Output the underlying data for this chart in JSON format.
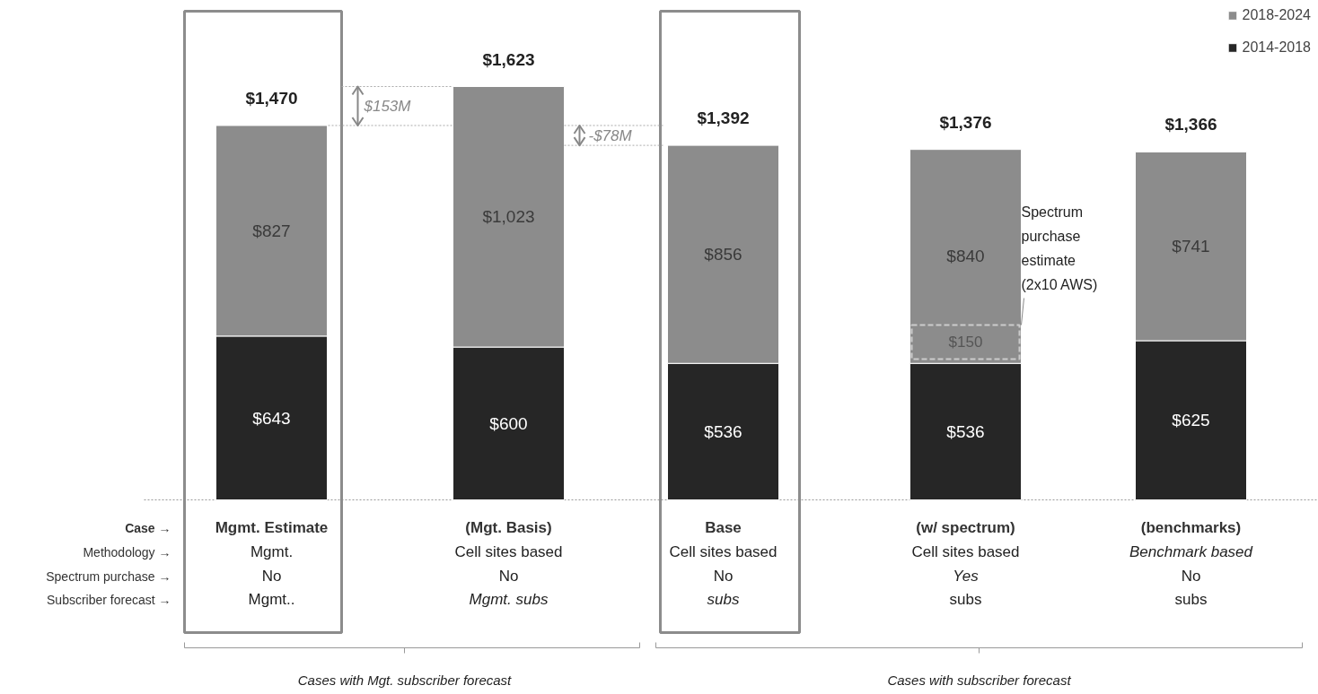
{
  "chart_data": {
    "type": "bar",
    "stacked": true,
    "legend": "top right",
    "categories": [
      "Mgmt. Estimate",
      "(Mgt. Basis)",
      "Base",
      "(w/ spectrum)",
      "(benchmarks)"
    ],
    "series": [
      {
        "name": "2014-2018",
        "color": "#262626",
        "values": [
          643,
          600,
          536,
          536,
          625
        ],
        "value_labels": [
          "$643",
          "$600",
          "$536",
          "$536",
          "$625"
        ]
      },
      {
        "name": "2018-2024",
        "color": "#8c8c8c",
        "values": [
          827,
          1023,
          856,
          840,
          741
        ],
        "value_labels": [
          "$827",
          "$1,023",
          "$856",
          "$840",
          "$741"
        ]
      }
    ],
    "totals": [
      "$1,470",
      "$1,623",
      "$1,392",
      "$1,376",
      "$1,366"
    ],
    "ref_lines": [
      {
        "axis": "y",
        "value": 1470,
        "color": "#aaaaaa",
        "line_style": "dotted"
      },
      {
        "axis": "y",
        "value": 1623,
        "color": "#aaaaaa",
        "line_style": "dotted"
      },
      {
        "axis": "y",
        "value": 1392,
        "color": "#aaaaaa",
        "line_style": "dotted"
      }
    ],
    "annotations": [
      "Case →",
      "Methodology →",
      "Spectrum purchase →",
      "Subscriber forecast →",
      "Mgmt.",
      "Cell sites based",
      "Cell sites based",
      "Cell sites based",
      "Benchmark based",
      "No",
      "No",
      "No",
      "Yes",
      "No",
      "Mgmt..",
      "Mgmt. subs",
      "subs",
      "subs",
      "subs",
      "Cases with Mgt. subscriber forecast",
      "Cases with subscriber forecast",
      "$153M",
      "-$78M",
      "$150",
      "Spectrum purchase estimate (2x10 AWS)"
    ]
  }
}
